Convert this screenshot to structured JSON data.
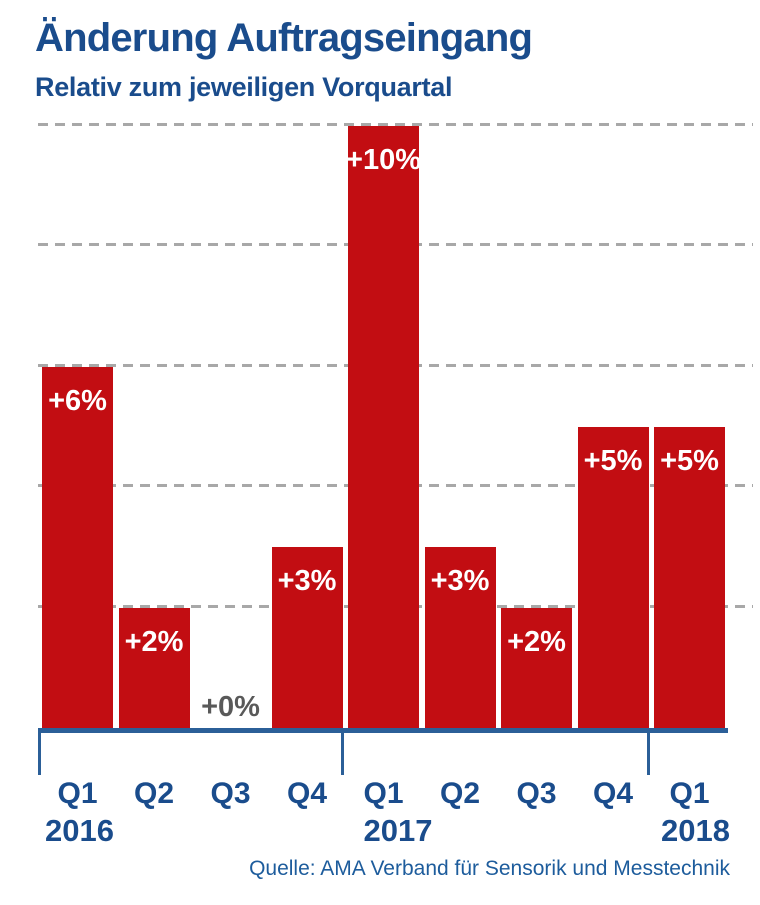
{
  "title": "Änderung Auftragseingang",
  "subtitle": "Relativ zum jeweiligen Vorquartal",
  "source": "Quelle: AMA Verband für Sensorik und Messtechnik",
  "colors": {
    "heading_blue": "#1A4C8C",
    "axis_blue": "#2B5F98",
    "bar_red": "#C20D12",
    "bar_label_white": "#FFFFFF",
    "zero_label_gray": "#595959",
    "gridline_gray": "#A8A8A8",
    "source_blue": "#1D5C9C",
    "background": "#FFFFFF"
  },
  "chart_data": {
    "type": "bar",
    "title": "Änderung Auftragseingang",
    "subtitle": "Relativ zum jeweiligen Vorquartal",
    "categories": [
      "Q1 2016",
      "Q2 2016",
      "Q3 2016",
      "Q4 2016",
      "Q1 2017",
      "Q2 2017",
      "Q3 2017",
      "Q4 2017",
      "Q1 2018"
    ],
    "quarter_labels": [
      "Q1",
      "Q2",
      "Q3",
      "Q4",
      "Q1",
      "Q2",
      "Q3",
      "Q4",
      "Q1"
    ],
    "year_labels": [
      {
        "label": "2016",
        "align": "left"
      },
      {
        "label": "2017",
        "align": "center"
      },
      {
        "label": "2018",
        "align": "right"
      }
    ],
    "values": [
      6,
      2,
      0,
      3,
      10,
      3,
      2,
      5,
      5
    ],
    "bar_labels": [
      "+6%",
      "+2%",
      "+0%",
      "+3%",
      "+10%",
      "+3%",
      "+2%",
      "+5%",
      "+5%"
    ],
    "unit": "%",
    "xlabel": "",
    "ylabel": "",
    "ylim": [
      0,
      10
    ],
    "gridlines": [
      2,
      4,
      6,
      8,
      10
    ],
    "grid": "dashed-horizontal",
    "legend": "none",
    "year_group_tick_positions": [
      "before Q1 2016",
      "before Q1 2017",
      "before Q1 2018"
    ]
  }
}
